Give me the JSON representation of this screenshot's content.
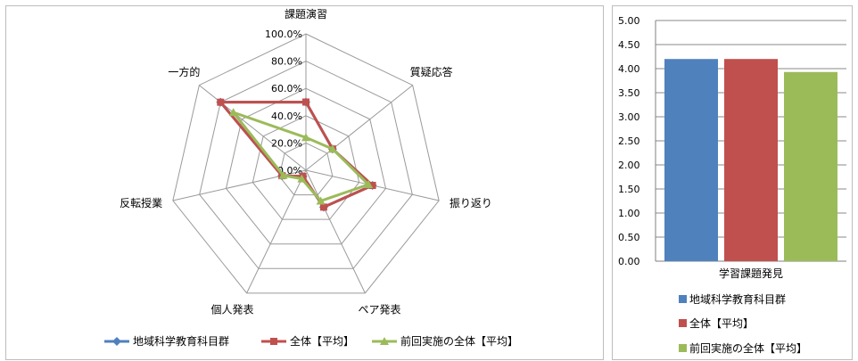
{
  "chart_data": [
    {
      "type": "radar",
      "axes": [
        "課題演習",
        "質疑応答",
        "振り返り",
        "ペア発表",
        "個人発表",
        "反転授業",
        "一方的"
      ],
      "ticks": [
        "0.0%",
        "20.0%",
        "40.0%",
        "60.0%",
        "80.0%",
        "100.0%"
      ],
      "range": [
        0,
        100
      ],
      "legend_position": "bottom",
      "series": [
        {
          "name": "地域科学教育科目群",
          "color": "#4F81BD",
          "marker": "diamond",
          "values": [
            50,
            25,
            50,
            30,
            5,
            18,
            80
          ]
        },
        {
          "name": "全体【平均】",
          "color": "#C0504D",
          "marker": "square",
          "values": [
            50,
            25,
            50,
            30,
            5,
            18,
            80
          ]
        },
        {
          "name": "前回実施の全体【平均】",
          "color": "#9BBB59",
          "marker": "triangle",
          "values": [
            24,
            25,
            47,
            25,
            7,
            17,
            68
          ]
        }
      ]
    },
    {
      "type": "bar",
      "categories": [
        "学習課題発見"
      ],
      "ylim": [
        0,
        5
      ],
      "yticks": [
        "0.00",
        "0.50",
        "1.00",
        "1.50",
        "2.00",
        "2.50",
        "3.00",
        "3.50",
        "4.00",
        "4.50",
        "5.00"
      ],
      "grid": true,
      "legend_position": "bottom",
      "series": [
        {
          "name": "地域科学教育科目群",
          "color": "#4F81BD",
          "values": [
            4.2
          ]
        },
        {
          "name": "全体【平均】",
          "color": "#C0504D",
          "values": [
            4.2
          ]
        },
        {
          "name": "前回実施の全体【平均】",
          "color": "#9BBB59",
          "values": [
            3.93
          ]
        }
      ]
    }
  ]
}
